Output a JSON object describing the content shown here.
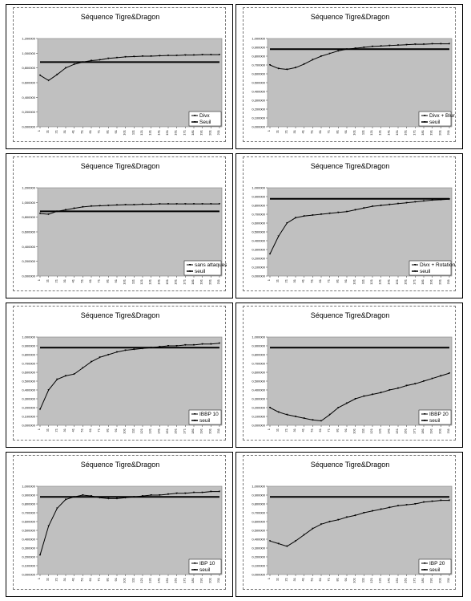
{
  "chart_data": [
    {
      "type": "line",
      "title": "Séquence Tigre&Dragon",
      "ylim": [
        0,
        1.2
      ],
      "yticks": [
        "0,000000",
        "0,200000",
        "0,400000",
        "0,600000",
        "0,800000",
        "1,000000",
        "1,200000"
      ],
      "x": [
        1,
        11,
        21,
        31,
        41,
        51,
        61,
        71,
        81,
        91,
        101,
        111,
        121,
        131,
        141,
        151,
        161,
        171,
        181,
        191,
        201,
        211
      ],
      "xticks": [
        "1",
        "11",
        "21",
        "31",
        "41",
        "51",
        "61",
        "71",
        "81",
        "91",
        "101",
        "111",
        "121",
        "131",
        "141",
        "151",
        "161",
        "171",
        "181",
        "191",
        "201",
        "211"
      ],
      "series": [
        {
          "name": "Divx",
          "values": [
            0.7,
            0.63,
            0.71,
            0.8,
            0.85,
            0.88,
            0.9,
            0.91,
            0.93,
            0.94,
            0.95,
            0.955,
            0.96,
            0.96,
            0.965,
            0.97,
            0.97,
            0.975,
            0.975,
            0.98,
            0.98,
            0.98
          ]
        },
        {
          "name": "Seuil",
          "values": [
            0.88,
            0.88,
            0.88,
            0.88,
            0.88,
            0.88,
            0.88,
            0.88,
            0.88,
            0.88,
            0.88,
            0.88,
            0.88,
            0.88,
            0.88,
            0.88,
            0.88,
            0.88,
            0.88,
            0.88,
            0.88,
            0.88
          ]
        }
      ],
      "legend": "bottom-right"
    },
    {
      "type": "line",
      "title": "Séquence Tigre&Dragon",
      "ylim": [
        0,
        1.0
      ],
      "yticks": [
        "0,000000",
        "0,100000",
        "0,200000",
        "0,300000",
        "0,400000",
        "0,500000",
        "0,600000",
        "0,700000",
        "0,800000",
        "0,900000",
        "1,000000"
      ],
      "x": [
        1,
        11,
        21,
        31,
        41,
        51,
        61,
        71,
        81,
        91,
        101,
        111,
        121,
        131,
        141,
        151,
        161,
        171,
        181,
        191,
        201,
        211
      ],
      "xticks": [
        "1",
        "11",
        "21",
        "31",
        "41",
        "51",
        "61",
        "71",
        "81",
        "91",
        "101",
        "111",
        "121",
        "131",
        "141",
        "151",
        "161",
        "171",
        "181",
        "191",
        "201",
        "211"
      ],
      "series": [
        {
          "name": "Divx + Blur",
          "values": [
            0.7,
            0.66,
            0.65,
            0.67,
            0.71,
            0.76,
            0.8,
            0.83,
            0.86,
            0.88,
            0.89,
            0.9,
            0.91,
            0.915,
            0.92,
            0.925,
            0.93,
            0.935,
            0.935,
            0.94,
            0.94,
            0.94
          ]
        },
        {
          "name": "seuil",
          "values": [
            0.88,
            0.88,
            0.88,
            0.88,
            0.88,
            0.88,
            0.88,
            0.88,
            0.88,
            0.88,
            0.88,
            0.88,
            0.88,
            0.88,
            0.88,
            0.88,
            0.88,
            0.88,
            0.88,
            0.88,
            0.88,
            0.88
          ]
        }
      ],
      "legend": "bottom-right"
    },
    {
      "type": "line",
      "title": "Séquence Tigre&Dragon",
      "ylim": [
        0,
        1.2
      ],
      "yticks": [
        "0,000000",
        "0,200000",
        "0,400000",
        "0,600000",
        "0,800000",
        "1,000000",
        "1,200000"
      ],
      "x": [
        1,
        11,
        21,
        31,
        41,
        51,
        61,
        71,
        81,
        91,
        101,
        111,
        121,
        131,
        141,
        151,
        161,
        171,
        181,
        191,
        201,
        211
      ],
      "xticks": [
        "1",
        "11",
        "21",
        "31",
        "41",
        "51",
        "61",
        "71",
        "81",
        "91",
        "101",
        "111",
        "121",
        "131",
        "141",
        "151",
        "161",
        "171",
        "181",
        "191",
        "201",
        "211"
      ],
      "series": [
        {
          "name": "sans attaques",
          "values": [
            0.85,
            0.84,
            0.88,
            0.9,
            0.92,
            0.94,
            0.95,
            0.955,
            0.96,
            0.965,
            0.97,
            0.97,
            0.975,
            0.975,
            0.98,
            0.98,
            0.98,
            0.98,
            0.98,
            0.98,
            0.98,
            0.98
          ]
        },
        {
          "name": "seuil",
          "values": [
            0.88,
            0.88,
            0.88,
            0.88,
            0.88,
            0.88,
            0.88,
            0.88,
            0.88,
            0.88,
            0.88,
            0.88,
            0.88,
            0.88,
            0.88,
            0.88,
            0.88,
            0.88,
            0.88,
            0.88,
            0.88,
            0.88
          ]
        }
      ],
      "legend": "bottom-right"
    },
    {
      "type": "line",
      "title": "Séquence Tigre&Dragon",
      "ylim": [
        0,
        1.0
      ],
      "yticks": [
        "0,000000",
        "0,100000",
        "0,200000",
        "0,300000",
        "0,400000",
        "0,500000",
        "0,600000",
        "0,700000",
        "0,800000",
        "0,900000",
        "1,000000"
      ],
      "x": [
        1,
        11,
        21,
        31,
        41,
        51,
        61,
        71,
        81,
        91,
        101,
        111,
        121,
        131,
        141,
        151,
        161,
        171,
        181,
        191,
        201,
        211
      ],
      "xticks": [
        "1",
        "11",
        "21",
        "31",
        "41",
        "51",
        "61",
        "71",
        "81",
        "91",
        "101",
        "111",
        "121",
        "131",
        "141",
        "151",
        "161",
        "171",
        "181",
        "191",
        "201",
        "211"
      ],
      "series": [
        {
          "name": "Divx + Rotation",
          "values": [
            0.25,
            0.45,
            0.6,
            0.66,
            0.68,
            0.69,
            0.7,
            0.71,
            0.72,
            0.73,
            0.75,
            0.77,
            0.79,
            0.8,
            0.81,
            0.82,
            0.83,
            0.84,
            0.85,
            0.86,
            0.865,
            0.87
          ]
        },
        {
          "name": "seuil",
          "values": [
            0.875,
            0.875,
            0.875,
            0.875,
            0.875,
            0.875,
            0.875,
            0.875,
            0.875,
            0.875,
            0.875,
            0.875,
            0.875,
            0.875,
            0.875,
            0.875,
            0.875,
            0.875,
            0.875,
            0.875,
            0.875,
            0.875
          ]
        }
      ],
      "legend": "bottom-right"
    },
    {
      "type": "line",
      "title": "Séquence Tigre&Dragon",
      "ylim": [
        0,
        1.0
      ],
      "yticks": [
        "0,000000",
        "0,100000",
        "0,200000",
        "0,300000",
        "0,400000",
        "0,500000",
        "0,600000",
        "0,700000",
        "0,800000",
        "0,900000",
        "1,000000"
      ],
      "x": [
        1,
        11,
        21,
        31,
        41,
        51,
        61,
        71,
        81,
        91,
        101,
        111,
        121,
        131,
        141,
        151,
        161,
        171,
        181,
        191,
        201,
        211
      ],
      "xticks": [
        "1",
        "11",
        "21",
        "31",
        "41",
        "51",
        "61",
        "71",
        "81",
        "91",
        "101",
        "111",
        "121",
        "131",
        "141",
        "151",
        "161",
        "171",
        "181",
        "191",
        "201",
        "211"
      ],
      "series": [
        {
          "name": "IBBP 10",
          "values": [
            0.18,
            0.4,
            0.52,
            0.56,
            0.58,
            0.65,
            0.72,
            0.77,
            0.8,
            0.83,
            0.85,
            0.86,
            0.87,
            0.88,
            0.89,
            0.9,
            0.9,
            0.91,
            0.91,
            0.92,
            0.92,
            0.93
          ]
        },
        {
          "name": "seuil",
          "values": [
            0.88,
            0.88,
            0.88,
            0.88,
            0.88,
            0.88,
            0.88,
            0.88,
            0.88,
            0.88,
            0.88,
            0.88,
            0.88,
            0.88,
            0.88,
            0.88,
            0.88,
            0.88,
            0.88,
            0.88,
            0.88,
            0.88
          ]
        }
      ],
      "legend": "bottom-right"
    },
    {
      "type": "line",
      "title": "Séquence Tigre&Dragon",
      "ylim": [
        0,
        1.0
      ],
      "yticks": [
        "0,000000",
        "0,100000",
        "0,200000",
        "0,300000",
        "0,400000",
        "0,500000",
        "0,600000",
        "0,700000",
        "0,800000",
        "0,900000",
        "1,000000"
      ],
      "x": [
        1,
        11,
        21,
        31,
        41,
        51,
        61,
        71,
        81,
        91,
        101,
        111,
        121,
        131,
        141,
        151,
        161,
        171,
        181,
        191,
        201,
        211
      ],
      "xticks": [
        "1",
        "11",
        "21",
        "31",
        "41",
        "51",
        "61",
        "71",
        "81",
        "91",
        "101",
        "111",
        "121",
        "131",
        "141",
        "151",
        "161",
        "171",
        "181",
        "191",
        "201",
        "211"
      ],
      "series": [
        {
          "name": "IBBP 20",
          "values": [
            0.2,
            0.15,
            0.12,
            0.1,
            0.08,
            0.06,
            0.05,
            0.12,
            0.2,
            0.25,
            0.3,
            0.33,
            0.35,
            0.37,
            0.4,
            0.42,
            0.45,
            0.47,
            0.5,
            0.53,
            0.56,
            0.59
          ]
        },
        {
          "name": "seuil",
          "values": [
            0.88,
            0.88,
            0.88,
            0.88,
            0.88,
            0.88,
            0.88,
            0.88,
            0.88,
            0.88,
            0.88,
            0.88,
            0.88,
            0.88,
            0.88,
            0.88,
            0.88,
            0.88,
            0.88,
            0.88,
            0.88,
            0.88
          ]
        }
      ],
      "legend": "bottom-right"
    },
    {
      "type": "line",
      "title": "Séquence Tigre&Dragon",
      "ylim": [
        0,
        1.0
      ],
      "yticks": [
        "0,000000",
        "0,100000",
        "0,200000",
        "0,300000",
        "0,400000",
        "0,500000",
        "0,600000",
        "0,700000",
        "0,800000",
        "0,900000",
        "1,000000"
      ],
      "x": [
        1,
        11,
        21,
        31,
        41,
        51,
        61,
        71,
        81,
        91,
        101,
        111,
        121,
        131,
        141,
        151,
        161,
        171,
        181,
        191,
        201,
        211
      ],
      "xticks": [
        "1",
        "11",
        "21",
        "31",
        "41",
        "51",
        "61",
        "71",
        "81",
        "91",
        "101",
        "111",
        "121",
        "131",
        "141",
        "151",
        "161",
        "171",
        "181",
        "191",
        "201",
        "211"
      ],
      "series": [
        {
          "name": "IBP 10",
          "values": [
            0.22,
            0.55,
            0.75,
            0.85,
            0.88,
            0.9,
            0.89,
            0.87,
            0.86,
            0.86,
            0.87,
            0.88,
            0.89,
            0.9,
            0.9,
            0.91,
            0.92,
            0.92,
            0.93,
            0.93,
            0.94,
            0.94
          ]
        },
        {
          "name": "seuil",
          "values": [
            0.88,
            0.88,
            0.88,
            0.88,
            0.88,
            0.88,
            0.88,
            0.88,
            0.88,
            0.88,
            0.88,
            0.88,
            0.88,
            0.88,
            0.88,
            0.88,
            0.88,
            0.88,
            0.88,
            0.88,
            0.88,
            0.88
          ]
        }
      ],
      "legend": "bottom-right"
    },
    {
      "type": "line",
      "title": "Séquence Tigre&Dragon",
      "ylim": [
        0,
        1.0
      ],
      "yticks": [
        "0,000000",
        "0,100000",
        "0,200000",
        "0,300000",
        "0,400000",
        "0,500000",
        "0,600000",
        "0,700000",
        "0,800000",
        "0,900000",
        "1,000000"
      ],
      "x": [
        1,
        11,
        21,
        31,
        41,
        51,
        61,
        71,
        81,
        91,
        101,
        111,
        121,
        131,
        141,
        151,
        161,
        171,
        181,
        191,
        201,
        211
      ],
      "xticks": [
        "1",
        "11",
        "21",
        "31",
        "41",
        "51",
        "61",
        "71",
        "81",
        "91",
        "101",
        "111",
        "121",
        "131",
        "141",
        "151",
        "161",
        "171",
        "181",
        "191",
        "201",
        "211"
      ],
      "series": [
        {
          "name": "IBP 20",
          "values": [
            0.38,
            0.35,
            0.32,
            0.38,
            0.45,
            0.52,
            0.57,
            0.6,
            0.62,
            0.65,
            0.67,
            0.7,
            0.72,
            0.74,
            0.76,
            0.78,
            0.79,
            0.8,
            0.82,
            0.83,
            0.84,
            0.84
          ]
        },
        {
          "name": "seuil",
          "values": [
            0.88,
            0.88,
            0.88,
            0.88,
            0.88,
            0.88,
            0.88,
            0.88,
            0.88,
            0.88,
            0.88,
            0.88,
            0.88,
            0.88,
            0.88,
            0.88,
            0.88,
            0.88,
            0.88,
            0.88,
            0.88,
            0.88
          ]
        }
      ],
      "legend": "bottom-right"
    }
  ],
  "colors": {
    "plot_bg": "#c0c0c0",
    "series": "#000000"
  }
}
